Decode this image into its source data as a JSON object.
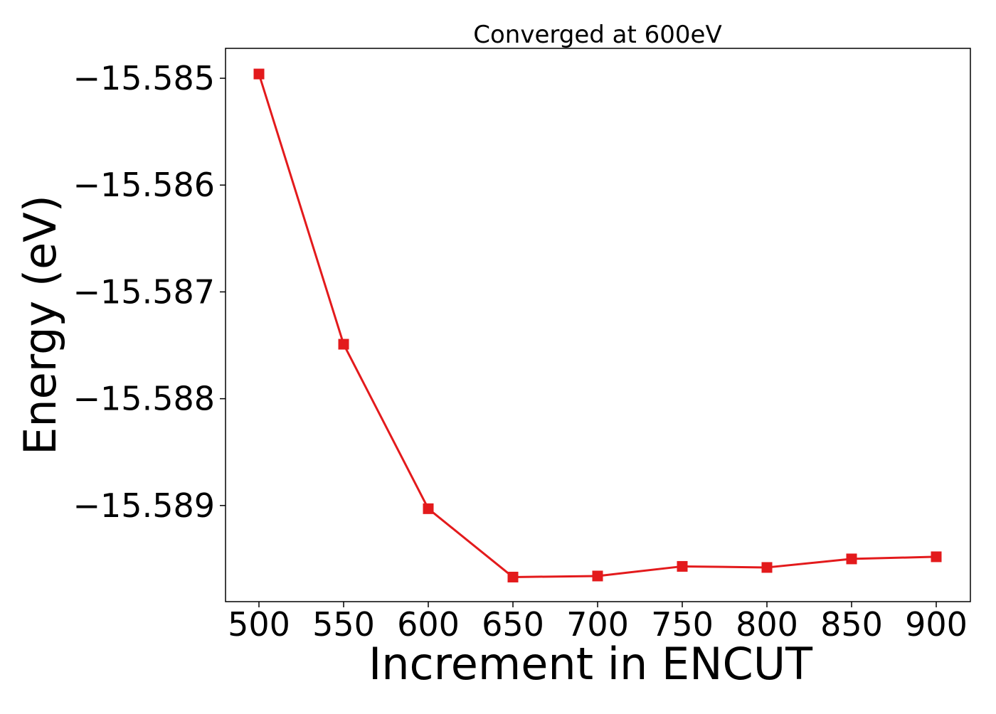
{
  "chart_data": {
    "type": "line",
    "title": "Converged at 600eV",
    "xlabel": "Increment in ENCUT",
    "ylabel": "Energy (eV)",
    "x": [
      500,
      550,
      600,
      650,
      700,
      750,
      800,
      850,
      900
    ],
    "series": [
      {
        "values": [
          -15.58496,
          -15.58749,
          -15.58903,
          -15.58967,
          -15.58966,
          -15.58957,
          -15.58958,
          -15.5895,
          -15.58948
        ],
        "color": "#e31a1c",
        "marker": "square"
      }
    ],
    "xticks": [
      500,
      550,
      600,
      650,
      700,
      750,
      800,
      850,
      900
    ],
    "xtick_labels": [
      "500",
      "550",
      "600",
      "650",
      "700",
      "750",
      "800",
      "850",
      "900"
    ],
    "yticks": [
      -15.585,
      -15.586,
      -15.587,
      -15.588,
      -15.589
    ],
    "ytick_labels": [
      "−15.585",
      "−15.586",
      "−15.587",
      "−15.588",
      "−15.589"
    ],
    "xlim": [
      480,
      900
    ],
    "ylim": [
      -15.5899,
      -15.58472
    ],
    "grid": false,
    "legend": "none"
  }
}
